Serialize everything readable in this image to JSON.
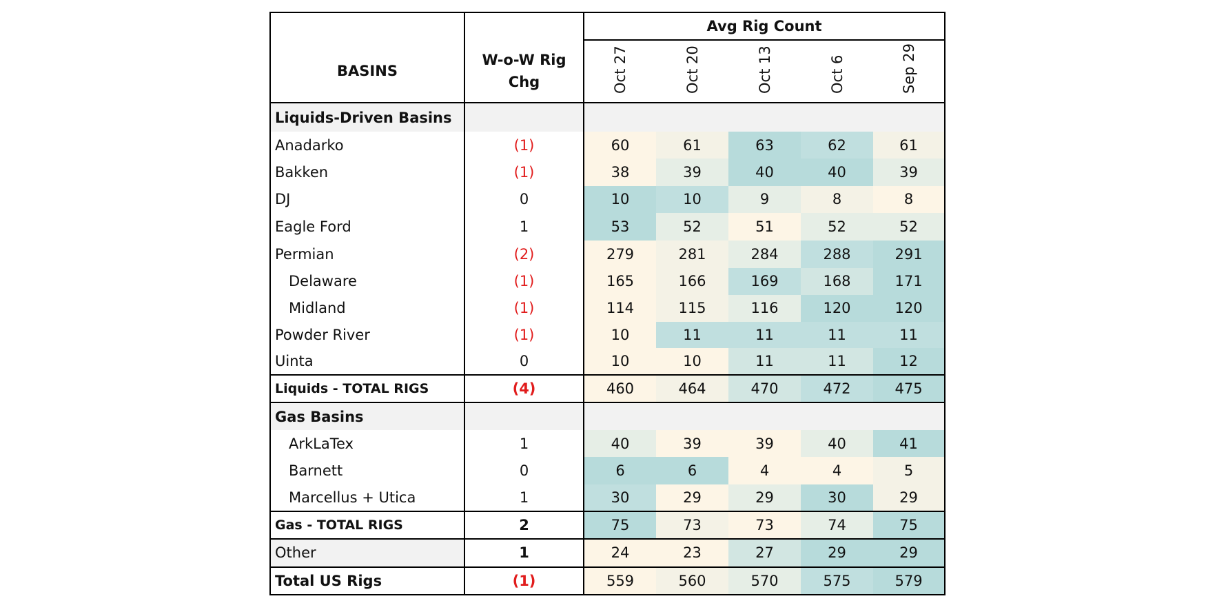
{
  "header": {
    "avg_rig_count": "Avg Rig Count",
    "basins": "BASINS",
    "wow_line1": "W-o-W Rig",
    "wow_line2": "Chg",
    "dates": [
      "Oct 27",
      "Oct 20",
      "Oct 13",
      "Oct 6",
      "Sep 29"
    ]
  },
  "rows": [
    {
      "kind": "section",
      "label": "Liquids-Driven Basins"
    },
    {
      "kind": "row",
      "label": "Anadarko",
      "chg": "(1)",
      "neg": true,
      "values": [
        "60",
        "61",
        "63",
        "62",
        "61"
      ]
    },
    {
      "kind": "row",
      "label": "Bakken",
      "chg": "(1)",
      "neg": true,
      "values": [
        "38",
        "39",
        "40",
        "40",
        "39"
      ]
    },
    {
      "kind": "row",
      "label": "DJ",
      "chg": "0",
      "values": [
        "10",
        "10",
        "9",
        "8",
        "8"
      ]
    },
    {
      "kind": "row",
      "label": "Eagle Ford",
      "chg": "1",
      "values": [
        "53",
        "52",
        "51",
        "52",
        "52"
      ]
    },
    {
      "kind": "row",
      "label": "Permian",
      "chg": "(2)",
      "neg": true,
      "values": [
        "279",
        "281",
        "284",
        "288",
        "291"
      ]
    },
    {
      "kind": "row",
      "label": "Delaware",
      "indent": true,
      "chg": "(1)",
      "neg": true,
      "values": [
        "165",
        "166",
        "169",
        "168",
        "171"
      ]
    },
    {
      "kind": "row",
      "label": "Midland",
      "indent": true,
      "chg": "(1)",
      "neg": true,
      "values": [
        "114",
        "115",
        "116",
        "120",
        "120"
      ]
    },
    {
      "kind": "row",
      "label": "Powder River",
      "chg": "(1)",
      "neg": true,
      "values": [
        "10",
        "11",
        "11",
        "11",
        "11"
      ]
    },
    {
      "kind": "row",
      "label": "Uinta",
      "chg": "0",
      "values": [
        "10",
        "10",
        "11",
        "11",
        "12"
      ]
    },
    {
      "kind": "total",
      "label_bold": "Liquids",
      "label_rest": " - TOTAL RIGS",
      "chg": "(4)",
      "neg": true,
      "values": [
        "460",
        "464",
        "470",
        "472",
        "475"
      ]
    },
    {
      "kind": "section",
      "label": "Gas Basins"
    },
    {
      "kind": "row",
      "label": "ArkLaTex",
      "indent": true,
      "chg": "1",
      "values": [
        "40",
        "39",
        "39",
        "40",
        "41"
      ]
    },
    {
      "kind": "row",
      "label": "Barnett",
      "indent": true,
      "chg": "0",
      "values": [
        "6",
        "6",
        "4",
        "4",
        "5"
      ]
    },
    {
      "kind": "row",
      "label": "Marcellus + Utica",
      "indent": true,
      "chg": "1",
      "values": [
        "30",
        "29",
        "29",
        "30",
        "29"
      ]
    },
    {
      "kind": "total",
      "label_bold": "Gas",
      "label_rest": " - TOTAL RIGS",
      "chg": "2",
      "values": [
        "75",
        "73",
        "73",
        "74",
        "75"
      ]
    },
    {
      "kind": "other",
      "label": "Other",
      "chg": "1",
      "values": [
        "24",
        "23",
        "27",
        "29",
        "29"
      ]
    },
    {
      "kind": "grand",
      "label": "Total US Rigs",
      "chg": "(1)",
      "neg": true,
      "values": [
        "559",
        "560",
        "570",
        "575",
        "579"
      ]
    }
  ],
  "colors": {
    "neg": "#e11d1d",
    "heat": [
      "#fdf5e6",
      "#f4f2e6",
      "#e6eee6",
      "#d2e6e2",
      "#c0dfdf",
      "#b7dbdb"
    ]
  },
  "heat_levels": [
    [],
    [
      0,
      1,
      5,
      4,
      1
    ],
    [
      0,
      2,
      5,
      5,
      2
    ],
    [
      5,
      4,
      2,
      1,
      0
    ],
    [
      5,
      2,
      0,
      2,
      2
    ],
    [
      0,
      1,
      2,
      4,
      5
    ],
    [
      0,
      1,
      4,
      3,
      5
    ],
    [
      0,
      1,
      2,
      5,
      5
    ],
    [
      0,
      4,
      4,
      4,
      4
    ],
    [
      0,
      0,
      3,
      3,
      5
    ],
    [
      0,
      1,
      3,
      4,
      5
    ],
    [],
    [
      2,
      0,
      0,
      2,
      5
    ],
    [
      5,
      5,
      0,
      0,
      1
    ],
    [
      4,
      0,
      2,
      5,
      1
    ],
    [
      5,
      1,
      0,
      2,
      5
    ],
    [
      0,
      0,
      3,
      5,
      5
    ],
    [
      0,
      1,
      2,
      4,
      5
    ]
  ]
}
